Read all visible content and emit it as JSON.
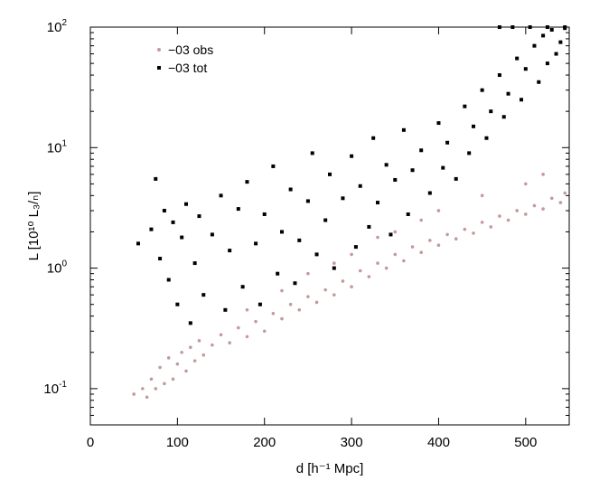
{
  "chart_data": {
    "type": "scatter",
    "xlabel": "d [h⁻¹ Mpc]",
    "ylabel": "L [10¹⁰ L₃/ₙ]",
    "x_scale": "linear",
    "y_scale": "log",
    "xlim": [
      0,
      550
    ],
    "ylim": [
      0.05,
      100
    ],
    "x_ticks": [
      0,
      100,
      200,
      300,
      400,
      500
    ],
    "x_tick_labels": [
      "0",
      "100",
      "200",
      "300",
      "400",
      "500"
    ],
    "y_ticks": [
      0.1,
      1,
      10,
      100
    ],
    "y_tick_labels": [
      {
        "base": "10",
        "exp": "-1"
      },
      {
        "base": "10",
        "exp": "0"
      },
      {
        "base": "10",
        "exp": "1"
      },
      {
        "base": "10",
        "exp": "2"
      }
    ],
    "grid": false,
    "legend_position": "top-left",
    "series": [
      {
        "name": "−03 obs",
        "color": "#c49a9a",
        "points": [
          [
            50,
            0.09
          ],
          [
            60,
            0.1
          ],
          [
            65,
            0.085
          ],
          [
            70,
            0.12
          ],
          [
            75,
            0.1
          ],
          [
            80,
            0.15
          ],
          [
            85,
            0.11
          ],
          [
            90,
            0.18
          ],
          [
            95,
            0.12
          ],
          [
            100,
            0.16
          ],
          [
            105,
            0.2
          ],
          [
            110,
            0.14
          ],
          [
            115,
            0.22
          ],
          [
            120,
            0.17
          ],
          [
            125,
            0.25
          ],
          [
            130,
            0.19
          ],
          [
            140,
            0.23
          ],
          [
            150,
            0.28
          ],
          [
            160,
            0.24
          ],
          [
            170,
            0.32
          ],
          [
            180,
            0.27
          ],
          [
            190,
            0.36
          ],
          [
            200,
            0.3
          ],
          [
            210,
            0.42
          ],
          [
            220,
            0.38
          ],
          [
            230,
            0.5
          ],
          [
            240,
            0.45
          ],
          [
            250,
            0.58
          ],
          [
            260,
            0.52
          ],
          [
            270,
            0.66
          ],
          [
            280,
            0.6
          ],
          [
            290,
            0.78
          ],
          [
            300,
            0.7
          ],
          [
            310,
            0.95
          ],
          [
            320,
            0.85
          ],
          [
            330,
            1.1
          ],
          [
            340,
            1.0
          ],
          [
            350,
            1.3
          ],
          [
            360,
            1.15
          ],
          [
            370,
            1.5
          ],
          [
            380,
            1.35
          ],
          [
            390,
            1.7
          ],
          [
            400,
            1.55
          ],
          [
            410,
            1.9
          ],
          [
            420,
            1.75
          ],
          [
            430,
            2.1
          ],
          [
            440,
            1.95
          ],
          [
            450,
            2.4
          ],
          [
            460,
            2.2
          ],
          [
            470,
            2.7
          ],
          [
            480,
            2.5
          ],
          [
            490,
            3.0
          ],
          [
            500,
            2.8
          ],
          [
            510,
            3.3
          ],
          [
            520,
            3.1
          ],
          [
            530,
            3.8
          ],
          [
            540,
            3.5
          ],
          [
            545,
            4.2
          ],
          [
            300,
            1.3
          ],
          [
            350,
            2.0
          ],
          [
            400,
            3.0
          ],
          [
            450,
            4.0
          ],
          [
            500,
            5.0
          ],
          [
            520,
            6.0
          ],
          [
            380,
            2.5
          ],
          [
            330,
            1.8
          ],
          [
            280,
            1.1
          ],
          [
            250,
            0.9
          ],
          [
            220,
            0.65
          ],
          [
            180,
            0.45
          ]
        ]
      },
      {
        "name": "−03 tot",
        "color": "#000000",
        "points": [
          [
            55,
            1.6
          ],
          [
            70,
            2.1
          ],
          [
            75,
            5.5
          ],
          [
            80,
            1.2
          ],
          [
            85,
            3.0
          ],
          [
            90,
            0.8
          ],
          [
            95,
            2.4
          ],
          [
            100,
            0.5
          ],
          [
            105,
            1.8
          ],
          [
            110,
            3.4
          ],
          [
            115,
            0.35
          ],
          [
            120,
            1.1
          ],
          [
            125,
            2.7
          ],
          [
            130,
            0.6
          ],
          [
            140,
            1.9
          ],
          [
            150,
            4.0
          ],
          [
            155,
            0.45
          ],
          [
            160,
            1.4
          ],
          [
            170,
            3.1
          ],
          [
            175,
            0.7
          ],
          [
            180,
            5.2
          ],
          [
            190,
            1.6
          ],
          [
            195,
            0.5
          ],
          [
            200,
            2.8
          ],
          [
            210,
            7.0
          ],
          [
            215,
            0.9
          ],
          [
            220,
            2.0
          ],
          [
            230,
            4.5
          ],
          [
            235,
            0.75
          ],
          [
            240,
            1.7
          ],
          [
            250,
            3.6
          ],
          [
            255,
            9.0
          ],
          [
            260,
            1.3
          ],
          [
            270,
            2.5
          ],
          [
            275,
            6.0
          ],
          [
            280,
            1.0
          ],
          [
            290,
            3.8
          ],
          [
            300,
            8.5
          ],
          [
            305,
            1.5
          ],
          [
            310,
            4.8
          ],
          [
            320,
            2.2
          ],
          [
            325,
            12.0
          ],
          [
            330,
            3.5
          ],
          [
            340,
            7.2
          ],
          [
            345,
            1.9
          ],
          [
            350,
            5.4
          ],
          [
            360,
            14.0
          ],
          [
            365,
            2.8
          ],
          [
            370,
            6.5
          ],
          [
            380,
            9.5
          ],
          [
            390,
            4.2
          ],
          [
            400,
            16.0
          ],
          [
            405,
            6.8
          ],
          [
            410,
            11.0
          ],
          [
            420,
            5.5
          ],
          [
            430,
            22.0
          ],
          [
            435,
            9.0
          ],
          [
            440,
            15.0
          ],
          [
            450,
            30.0
          ],
          [
            455,
            12.0
          ],
          [
            460,
            20.0
          ],
          [
            470,
            40.0
          ],
          [
            475,
            18.0
          ],
          [
            480,
            28.0
          ],
          [
            490,
            55.0
          ],
          [
            495,
            25.0
          ],
          [
            500,
            45.0
          ],
          [
            510,
            70.0
          ],
          [
            515,
            35.0
          ],
          [
            520,
            85.0
          ],
          [
            525,
            50.0
          ],
          [
            530,
            95.0
          ],
          [
            535,
            60.0
          ],
          [
            540,
            75.0
          ],
          [
            545,
            98.0
          ],
          [
            485,
            100.0
          ],
          [
            505,
            100.0
          ],
          [
            525,
            100.0
          ],
          [
            545,
            100.0
          ],
          [
            470,
            100.0
          ]
        ]
      }
    ]
  }
}
